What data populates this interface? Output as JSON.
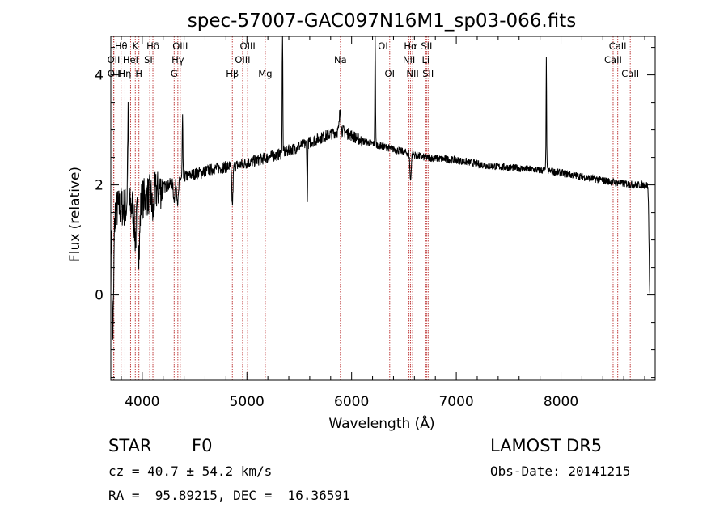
{
  "chart_data": {
    "type": "line",
    "title": "spec-57007-GAC097N16M1_sp03-066.fits",
    "xlabel": "Wavelength (Å)",
    "ylabel": "Flux (relative)",
    "xlim": [
      3700,
      8900
    ],
    "ylim": [
      -1.55,
      4.7
    ],
    "xticks": [
      4000,
      5000,
      6000,
      7000,
      8000
    ],
    "yticks": [
      0,
      2,
      4
    ],
    "grid": false,
    "legend": "none",
    "line_color": "#000000",
    "marker_color": "#c04040",
    "continuum": [
      [
        3700,
        1.5
      ],
      [
        3800,
        1.6
      ],
      [
        3900,
        1.6
      ],
      [
        4000,
        1.75
      ],
      [
        4100,
        1.85
      ],
      [
        4200,
        1.95
      ],
      [
        4300,
        2.05
      ],
      [
        4400,
        2.15
      ],
      [
        4500,
        2.2
      ],
      [
        4700,
        2.3
      ],
      [
        4900,
        2.35
      ],
      [
        5100,
        2.45
      ],
      [
        5300,
        2.55
      ],
      [
        5500,
        2.7
      ],
      [
        5700,
        2.85
      ],
      [
        5900,
        3.0
      ],
      [
        6000,
        2.9
      ],
      [
        6100,
        2.8
      ],
      [
        6300,
        2.7
      ],
      [
        6500,
        2.6
      ],
      [
        6700,
        2.5
      ],
      [
        7000,
        2.45
      ],
      [
        7300,
        2.35
      ],
      [
        7600,
        2.3
      ],
      [
        7900,
        2.25
      ],
      [
        8200,
        2.15
      ],
      [
        8500,
        2.05
      ],
      [
        8700,
        2.0
      ],
      [
        8850,
        2.0
      ]
    ],
    "features": [
      {
        "x": 3720,
        "dy": -2.2,
        "w": 8
      },
      {
        "x": 3865,
        "dy": 1.6,
        "w": 5
      },
      {
        "x": 3935,
        "dy": -0.6,
        "w": 10
      },
      {
        "x": 3970,
        "dy": -0.9,
        "w": 8
      },
      {
        "x": 4102,
        "dy": -0.4,
        "w": 8
      },
      {
        "x": 4305,
        "dy": -0.3,
        "w": 8
      },
      {
        "x": 4340,
        "dy": -0.4,
        "w": 8
      },
      {
        "x": 4385,
        "dy": 1.1,
        "w": 3
      },
      {
        "x": 4861,
        "dy": -0.7,
        "w": 6
      },
      {
        "x": 5340,
        "dy": 2.3,
        "w": 3
      },
      {
        "x": 5577,
        "dy": -1.1,
        "w": 3
      },
      {
        "x": 5890,
        "dy": 0.4,
        "w": 6
      },
      {
        "x": 6225,
        "dy": 2.1,
        "w": 3
      },
      {
        "x": 6563,
        "dy": -0.5,
        "w": 6
      },
      {
        "x": 7860,
        "dy": 2.0,
        "w": 3
      },
      {
        "x": 8850,
        "dy": -2.0,
        "w": 8
      }
    ],
    "lines": [
      {
        "name": "Hθ",
        "x": 3798,
        "row": 0
      },
      {
        "name": "OII",
        "x": 3727,
        "row": 1
      },
      {
        "name": "OII",
        "x": 3729,
        "row": 2
      },
      {
        "name": "K",
        "x": 3934,
        "row": 0
      },
      {
        "name": "HeI",
        "x": 3889,
        "row": 1
      },
      {
        "name": "Hη",
        "x": 3835,
        "row": 2
      },
      {
        "name": "Hδ",
        "x": 4102,
        "row": 0
      },
      {
        "name": "SII",
        "x": 4072,
        "row": 1
      },
      {
        "name": "H",
        "x": 3968,
        "row": 2
      },
      {
        "name": "OIII",
        "x": 4363,
        "row": 0
      },
      {
        "name": "Hγ",
        "x": 4340,
        "row": 1
      },
      {
        "name": "G",
        "x": 4305,
        "row": 2
      },
      {
        "name": "OIII",
        "x": 5007,
        "row": 0
      },
      {
        "name": "OIII",
        "x": 4959,
        "row": 1
      },
      {
        "name": "Hβ",
        "x": 4861,
        "row": 2
      },
      {
        "name": "Mg",
        "x": 5175,
        "row": 2
      },
      {
        "name": "Na",
        "x": 5893,
        "row": 1
      },
      {
        "name": "OI",
        "x": 6300,
        "row": 0
      },
      {
        "name": "OI",
        "x": 6364,
        "row": 2
      },
      {
        "name": "Hα",
        "x": 6563,
        "row": 0
      },
      {
        "name": "NII",
        "x": 6548,
        "row": 1
      },
      {
        "name": "NII",
        "x": 6583,
        "row": 2
      },
      {
        "name": "SII",
        "x": 6716,
        "row": 0
      },
      {
        "name": "Li",
        "x": 6708,
        "row": 1
      },
      {
        "name": "SII",
        "x": 6731,
        "row": 2
      },
      {
        "name": "CaII",
        "x": 8542,
        "row": 0
      },
      {
        "name": "CaII",
        "x": 8498,
        "row": 1
      },
      {
        "name": "CaII",
        "x": 8662,
        "row": 2
      }
    ]
  },
  "info": {
    "class_label": "STAR",
    "subclass": "F0",
    "survey": "LAMOST DR5",
    "redshift_text": "cz = 40.7 ± 54.2 km/s",
    "obs_date_text": "Obs-Date: 20141215",
    "coords_text": "RA =  95.89215, DEC =  16.36591"
  }
}
